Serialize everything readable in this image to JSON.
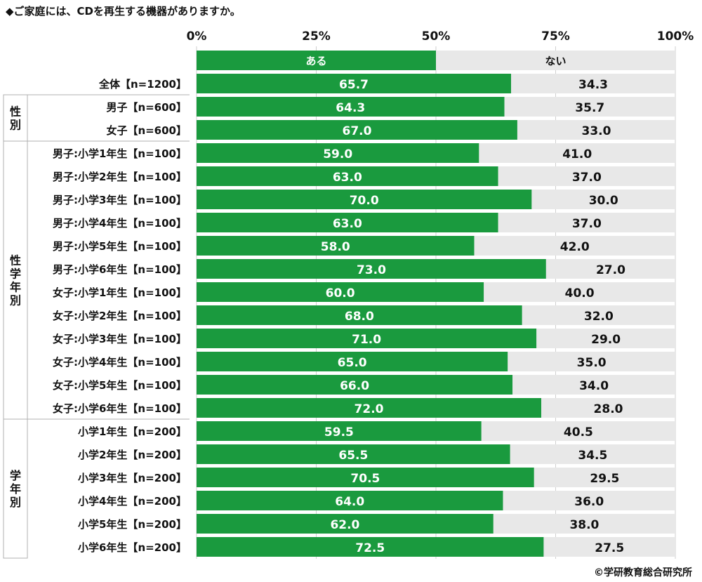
{
  "question": "◆ご家庭には、CDを再生する機器がありますか。",
  "credit": "©学研教育総合研究所",
  "colors": {
    "yes": "#1a9a3e",
    "no": "#e8e8e8",
    "group_border": "#b0b0b0",
    "text_on_yes": "#ffffff",
    "text_on_no": "#111111"
  },
  "chart_data": {
    "type": "bar",
    "orientation": "horizontal",
    "stacked": "100%",
    "xlim": [
      0,
      100
    ],
    "ticks": [
      "0%",
      "25%",
      "50%",
      "75%",
      "100%"
    ],
    "grid": true,
    "legend_row": {
      "yes": "ある",
      "no": "ない"
    },
    "series": [
      {
        "name": "ある",
        "values": [
          65.7,
          64.3,
          67.0,
          59.0,
          63.0,
          70.0,
          63.0,
          58.0,
          73.0,
          60.0,
          68.0,
          71.0,
          65.0,
          66.0,
          72.0,
          59.5,
          65.5,
          70.5,
          64.0,
          62.0,
          72.5
        ]
      },
      {
        "name": "ない",
        "values": [
          34.3,
          35.7,
          33.0,
          41.0,
          37.0,
          30.0,
          37.0,
          42.0,
          27.0,
          40.0,
          32.0,
          29.0,
          35.0,
          34.0,
          28.0,
          40.5,
          34.5,
          29.5,
          36.0,
          38.0,
          27.5
        ]
      }
    ],
    "categories": [
      "全体【n=1200】",
      "男子【n=600】",
      "女子【n=600】",
      "男子:小学1年生【n=100】",
      "男子:小学2年生【n=100】",
      "男子:小学3年生【n=100】",
      "男子:小学4年生【n=100】",
      "男子:小学5年生【n=100】",
      "男子:小学6年生【n=100】",
      "女子:小学1年生【n=100】",
      "女子:小学2年生【n=100】",
      "女子:小学3年生【n=100】",
      "女子:小学4年生【n=100】",
      "女子:小学5年生【n=100】",
      "女子:小学6年生【n=100】",
      "小学1年生【n=200】",
      "小学2年生【n=200】",
      "小学3年生【n=200】",
      "小学4年生【n=200】",
      "小学5年生【n=200】",
      "小学6年生【n=200】"
    ],
    "value_labels": {
      "yes": [
        "65.7",
        "64.3",
        "67.0",
        "59.0",
        "63.0",
        "70.0",
        "63.0",
        "58.0",
        "73.0",
        "60.0",
        "68.0",
        "71.0",
        "65.0",
        "66.0",
        "72.0",
        "59.5",
        "65.5",
        "70.5",
        "64.0",
        "62.0",
        "72.5"
      ],
      "no": [
        "34.3",
        "35.7",
        "33.0",
        "41.0",
        "37.0",
        "30.0",
        "37.0",
        "42.0",
        "27.0",
        "40.0",
        "32.0",
        "29.0",
        "35.0",
        "34.0",
        "28.0",
        "40.5",
        "34.5",
        "29.5",
        "36.0",
        "38.0",
        "27.5"
      ]
    },
    "groups": [
      {
        "label": "性別",
        "chars": [
          "性",
          "別"
        ],
        "from": 1,
        "to": 2
      },
      {
        "label": "性学年別",
        "chars": [
          "性",
          "学",
          "年",
          "別"
        ],
        "from": 3,
        "to": 14
      },
      {
        "label": "学年別",
        "chars": [
          "学",
          "年",
          "別"
        ],
        "from": 15,
        "to": 20
      }
    ]
  }
}
